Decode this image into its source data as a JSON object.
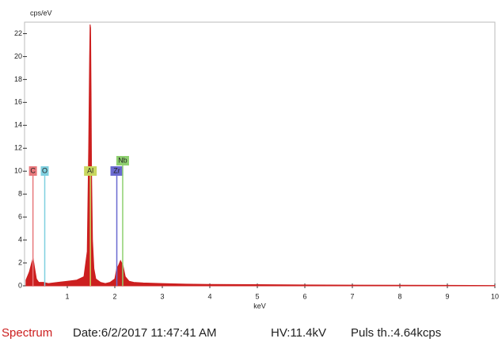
{
  "chart_data": {
    "type": "area",
    "y_label": "cps/eV",
    "x_label": "keV",
    "x": [
      0.13,
      0.2,
      0.25,
      0.28,
      0.31,
      0.35,
      0.4,
      0.5,
      0.6,
      0.8,
      1.0,
      1.2,
      1.35,
      1.42,
      1.45,
      1.47,
      1.48,
      1.49,
      1.5,
      1.51,
      1.53,
      1.56,
      1.6,
      1.7,
      1.8,
      1.9,
      2.0,
      2.04,
      2.08,
      2.12,
      2.17,
      2.22,
      2.3,
      2.4,
      2.6,
      3.0,
      3.5,
      4.0,
      5.0,
      6.0,
      7.0,
      8.0,
      9.0,
      10.0
    ],
    "series": [
      {
        "color": "#cc1f1f",
        "values": [
          0.5,
          1.2,
          2.0,
          2.4,
          1.6,
          0.6,
          0.3,
          0.3,
          0.2,
          0.3,
          0.4,
          0.5,
          0.8,
          3,
          12,
          20,
          22.8,
          22.5,
          17,
          10,
          4,
          1.5,
          0.6,
          0.3,
          0.2,
          0.3,
          0.6,
          1.5,
          1.8,
          2.2,
          1.8,
          0.8,
          0.4,
          0.3,
          0.25,
          0.2,
          0.15,
          0.12,
          0.1,
          0.08,
          0.06,
          0.05,
          0.04,
          0.03
        ]
      }
    ],
    "xlim": [
      0.1,
      10
    ],
    "ylim": [
      0,
      23
    ],
    "xticks": [
      1,
      2,
      3,
      4,
      5,
      6,
      7,
      8,
      9,
      10
    ],
    "yticks": [
      0,
      2,
      4,
      6,
      8,
      10,
      12,
      14,
      16,
      18,
      20,
      22
    ],
    "markers": [
      {
        "label": "C",
        "energy": 0.277,
        "color": "#e8787c"
      },
      {
        "label": "O",
        "energy": 0.525,
        "color": "#7fd0e0"
      },
      {
        "label": "Al",
        "energy": 1.486,
        "color": "#c8d860"
      },
      {
        "label": "Zr",
        "energy": 2.042,
        "color": "#6a6ad0"
      },
      {
        "label": "Nb",
        "energy": 2.166,
        "color": "#8fd070"
      }
    ]
  },
  "footer": {
    "name": "Spectrum",
    "date": "Date:6/2/2017 11:47:41 AM",
    "hv": "HV:11.4kV",
    "puls": "Puls th.:4.64kcps"
  }
}
